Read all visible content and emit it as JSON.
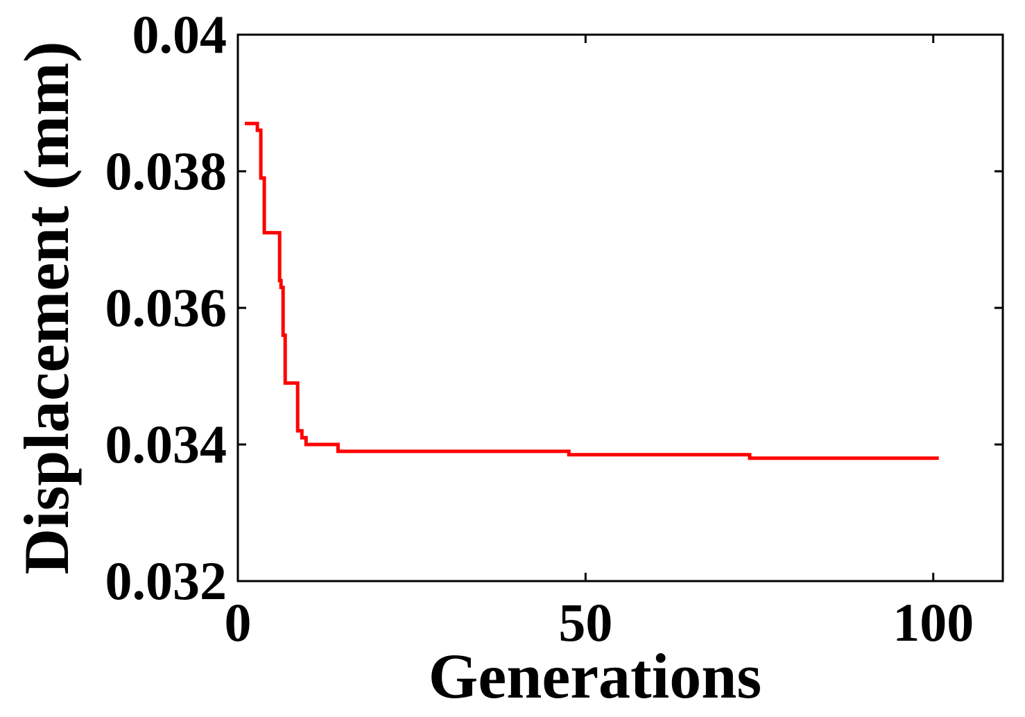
{
  "chart_data": {
    "type": "line",
    "title": "",
    "xlabel": "Generations",
    "ylabel": "Displacement (mm)",
    "xlim": [
      0,
      110
    ],
    "ylim": [
      0.032,
      0.04
    ],
    "xticks": [
      0,
      50,
      100
    ],
    "xtick_labels": [
      "0",
      "50",
      "100"
    ],
    "yticks": [
      0.032,
      0.034,
      0.036,
      0.038,
      0.04
    ],
    "ytick_labels": [
      "0.032",
      "0.034",
      "0.036",
      "0.038",
      "0.04"
    ],
    "grid": false,
    "line_style": "step",
    "series": [
      {
        "color": "#ff0000",
        "x": [
          1,
          2.6,
          2.8,
          3.3,
          3.8,
          6.0,
          6.2,
          6.5,
          6.8,
          8.6,
          9.2,
          9.8,
          14.0,
          14.4,
          47.3,
          47.6,
          73.3,
          73.6,
          100.8
        ],
        "y": [
          0.0387,
          0.0387,
          0.0386,
          0.0379,
          0.0371,
          0.0364,
          0.0363,
          0.0356,
          0.0349,
          0.0342,
          0.0341,
          0.034,
          0.034,
          0.0339,
          0.0339,
          0.03385,
          0.03385,
          0.0338,
          0.0338
        ]
      }
    ]
  }
}
